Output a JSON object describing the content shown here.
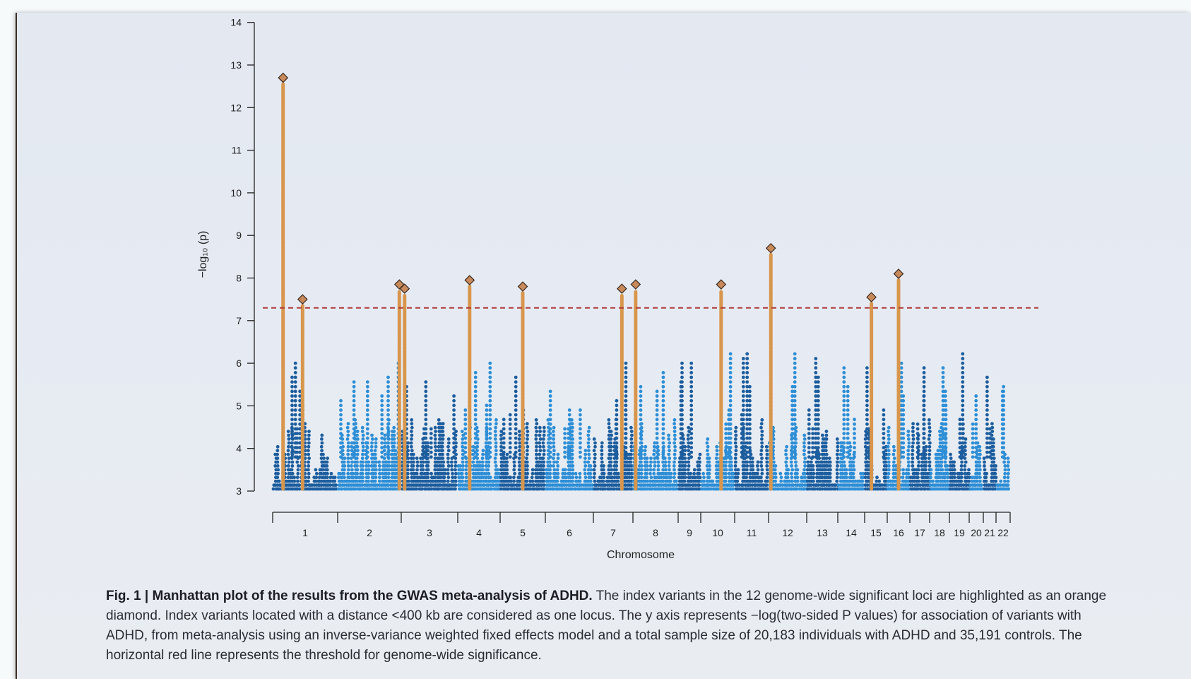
{
  "caption": {
    "bold": "Fig. 1 | Manhattan plot of the results from the GWAS meta-analysis of ADHD.",
    "text": " The index variants in the 12 genome-wide significant loci are highlighted as an orange diamond. Index variants located with a distance <400 kb are considered as one locus. The y axis represents −log(two-sided P values) for association of variants with ADHD, from meta-analysis using an inverse-variance weighted fixed effects model and a total sample size of 20,183 individuals with ADHD and 35,191 controls. The horizontal red line represents the threshold for genome-wide significance."
  },
  "colors": {
    "dark_blue": "#1c5d9e",
    "light_blue": "#2d8ed6",
    "highlight": "#d8964c",
    "diamond_fill": "#c98a5b",
    "threshold": "#b03a3a"
  },
  "chart_data": {
    "type": "scatter",
    "title": "",
    "xlabel": "Chromosome",
    "ylabel": "−log₁₀ (p)",
    "ylim": [
      3,
      14
    ],
    "y_ticks": [
      "3",
      "4",
      "5",
      "6",
      "7",
      "8",
      "9",
      "10",
      "11",
      "12",
      "13",
      "14"
    ],
    "x_categories": [
      "1",
      "2",
      "3",
      "4",
      "5",
      "6",
      "7",
      "8",
      "9",
      "10",
      "11",
      "12",
      "13",
      "14",
      "15",
      "16",
      "17",
      "18",
      "19",
      "20",
      "21",
      "22"
    ],
    "threshold": 7.3,
    "grid": false,
    "legend": "none",
    "index_variants": [
      {
        "chr": "1",
        "pos": 0.16,
        "y": 12.7
      },
      {
        "chr": "1",
        "pos": 0.46,
        "y": 7.5
      },
      {
        "chr": "2",
        "pos": 0.97,
        "y": 7.85
      },
      {
        "chr": "3",
        "pos": 0.06,
        "y": 7.75
      },
      {
        "chr": "4",
        "pos": 0.28,
        "y": 7.95
      },
      {
        "chr": "5",
        "pos": 0.5,
        "y": 7.8
      },
      {
        "chr": "7",
        "pos": 0.72,
        "y": 7.75
      },
      {
        "chr": "8",
        "pos": 0.06,
        "y": 7.85
      },
      {
        "chr": "10",
        "pos": 0.6,
        "y": 7.85
      },
      {
        "chr": "12",
        "pos": 0.06,
        "y": 8.7
      },
      {
        "chr": "15",
        "pos": 0.3,
        "y": 7.55
      },
      {
        "chr": "16",
        "pos": 0.5,
        "y": 8.1
      }
    ]
  }
}
